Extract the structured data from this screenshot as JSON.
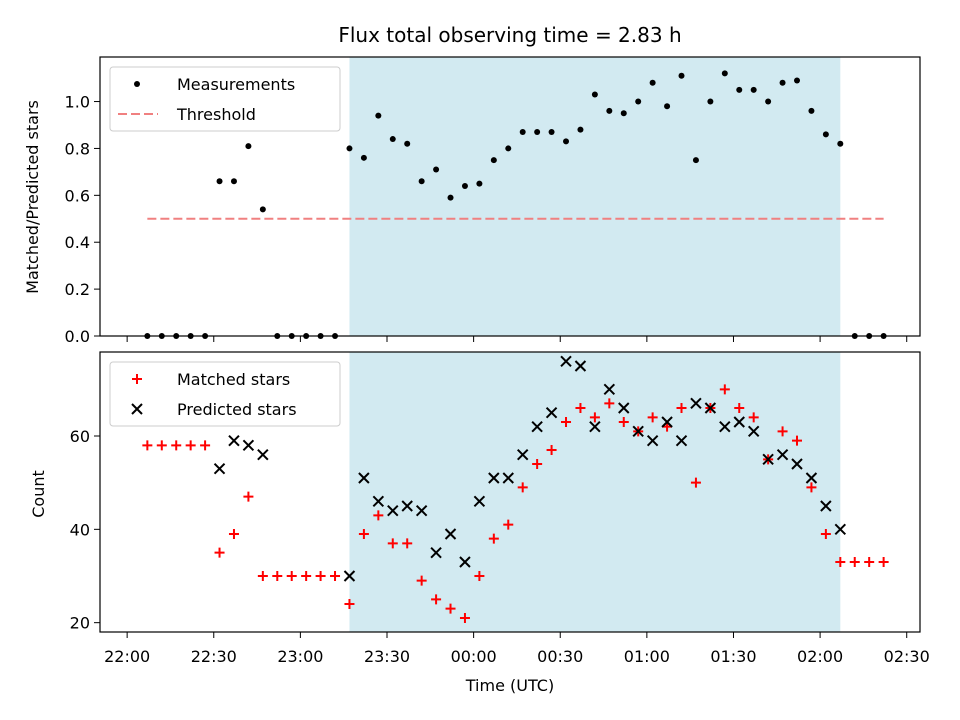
{
  "chart_data": [
    {
      "type": "scatter",
      "title": "Flux total observing time = 2.83 h",
      "xlabel": "",
      "ylabel": "Matched/Predicted stars",
      "x_tick_labels": [],
      "ylim": [
        0,
        1.19
      ],
      "yticks": [
        0.0,
        0.2,
        0.4,
        0.6,
        0.8,
        1.0
      ],
      "ytick_labels": [
        "0.0",
        "0.2",
        "0.4",
        "0.6",
        "0.8",
        "1.0"
      ],
      "legend_position": "upper-left",
      "shaded_window": {
        "start": "23:17",
        "end": "02:07",
        "color": "#add8e6"
      },
      "series": [
        {
          "name": "Measurements",
          "marker": "dot",
          "color": "#000000",
          "x": [
            "22:07",
            "22:12",
            "22:17",
            "22:22",
            "22:27",
            "22:32",
            "22:37",
            "22:42",
            "22:47",
            "22:52",
            "22:57",
            "23:02",
            "23:07",
            "23:12",
            "23:17",
            "23:22",
            "23:27",
            "23:32",
            "23:37",
            "23:42",
            "23:47",
            "23:52",
            "23:57",
            "00:02",
            "00:07",
            "00:12",
            "00:17",
            "00:22",
            "00:27",
            "00:32",
            "00:37",
            "00:42",
            "00:47",
            "00:52",
            "00:57",
            "01:02",
            "01:07",
            "01:12",
            "01:17",
            "01:22",
            "01:27",
            "01:32",
            "01:37",
            "01:42",
            "01:47",
            "01:52",
            "01:57",
            "02:02",
            "02:07",
            "02:12",
            "02:17",
            "02:22"
          ],
          "y": [
            0,
            0,
            0,
            0,
            0,
            0.66,
            0.66,
            0.81,
            0.54,
            0,
            0,
            0,
            0,
            0,
            0.8,
            0.76,
            0.94,
            0.84,
            0.82,
            0.66,
            0.71,
            0.59,
            0.64,
            0.65,
            0.75,
            0.8,
            0.87,
            0.87,
            0.87,
            0.83,
            0.88,
            1.03,
            0.96,
            0.95,
            1.0,
            1.08,
            0.98,
            1.11,
            0.75,
            1.0,
            1.12,
            1.05,
            1.05,
            1.0,
            1.08,
            1.09,
            0.96,
            0.86,
            0.82,
            0,
            0,
            0
          ]
        },
        {
          "name": "Threshold",
          "style": "dashed",
          "color": "#f08080",
          "x": [
            "22:07",
            "02:22"
          ],
          "y": [
            0.5,
            0.5
          ]
        }
      ]
    },
    {
      "type": "scatter",
      "title": "",
      "xlabel": "Time (UTC)",
      "ylabel": "Count",
      "x_tick_labels": [
        "22:00",
        "22:30",
        "23:00",
        "23:30",
        "00:00",
        "00:30",
        "01:00",
        "01:30",
        "02:00",
        "02:30"
      ],
      "ylim": [
        18,
        78
      ],
      "yticks": [
        20,
        40,
        60
      ],
      "ytick_labels": [
        "20",
        "40",
        "60"
      ],
      "legend_position": "upper-left",
      "shaded_window": {
        "start": "23:17",
        "end": "02:07",
        "color": "#add8e6"
      },
      "series": [
        {
          "name": "Matched stars",
          "marker": "plus",
          "color": "#ff0000",
          "x": [
            "22:07",
            "22:12",
            "22:17",
            "22:22",
            "22:27",
            "22:32",
            "22:37",
            "22:42",
            "22:47",
            "22:52",
            "22:57",
            "23:02",
            "23:07",
            "23:12",
            "23:17",
            "23:22",
            "23:27",
            "23:32",
            "23:37",
            "23:42",
            "23:47",
            "23:52",
            "23:57",
            "00:02",
            "00:07",
            "00:12",
            "00:17",
            "00:22",
            "00:27",
            "00:32",
            "00:37",
            "00:42",
            "00:47",
            "00:52",
            "00:57",
            "01:02",
            "01:07",
            "01:12",
            "01:17",
            "01:22",
            "01:27",
            "01:32",
            "01:37",
            "01:42",
            "01:47",
            "01:52",
            "01:57",
            "02:02",
            "02:07",
            "02:12",
            "02:17",
            "02:22"
          ],
          "y": [
            58,
            58,
            58,
            58,
            58,
            35,
            39,
            47,
            30,
            30,
            30,
            30,
            30,
            30,
            24,
            39,
            43,
            37,
            37,
            29,
            25,
            23,
            21,
            30,
            38,
            41,
            49,
            54,
            57,
            63,
            66,
            64,
            67,
            63,
            61,
            64,
            62,
            66,
            50,
            66,
            70,
            66,
            64,
            55,
            61,
            59,
            49,
            39,
            33,
            33,
            33,
            33
          ]
        },
        {
          "name": "Predicted stars",
          "marker": "x",
          "color": "#000000",
          "x": [
            "22:32",
            "22:37",
            "22:42",
            "22:47",
            "23:17",
            "23:22",
            "23:27",
            "23:32",
            "23:37",
            "23:42",
            "23:47",
            "23:52",
            "23:57",
            "00:02",
            "00:07",
            "00:12",
            "00:17",
            "00:22",
            "00:27",
            "00:32",
            "00:37",
            "00:42",
            "00:47",
            "00:52",
            "00:57",
            "01:02",
            "01:07",
            "01:12",
            "01:17",
            "01:22",
            "01:27",
            "01:32",
            "01:37",
            "01:42",
            "01:47",
            "01:52",
            "01:57",
            "02:02",
            "02:07"
          ],
          "y": [
            53,
            59,
            58,
            56,
            30,
            51,
            46,
            44,
            45,
            44,
            35,
            39,
            33,
            46,
            51,
            51,
            56,
            62,
            65,
            76,
            75,
            62,
            70,
            66,
            61,
            59,
            63,
            59,
            67,
            66,
            62,
            63,
            61,
            55,
            56,
            54,
            51,
            45,
            40
          ]
        }
      ]
    }
  ]
}
